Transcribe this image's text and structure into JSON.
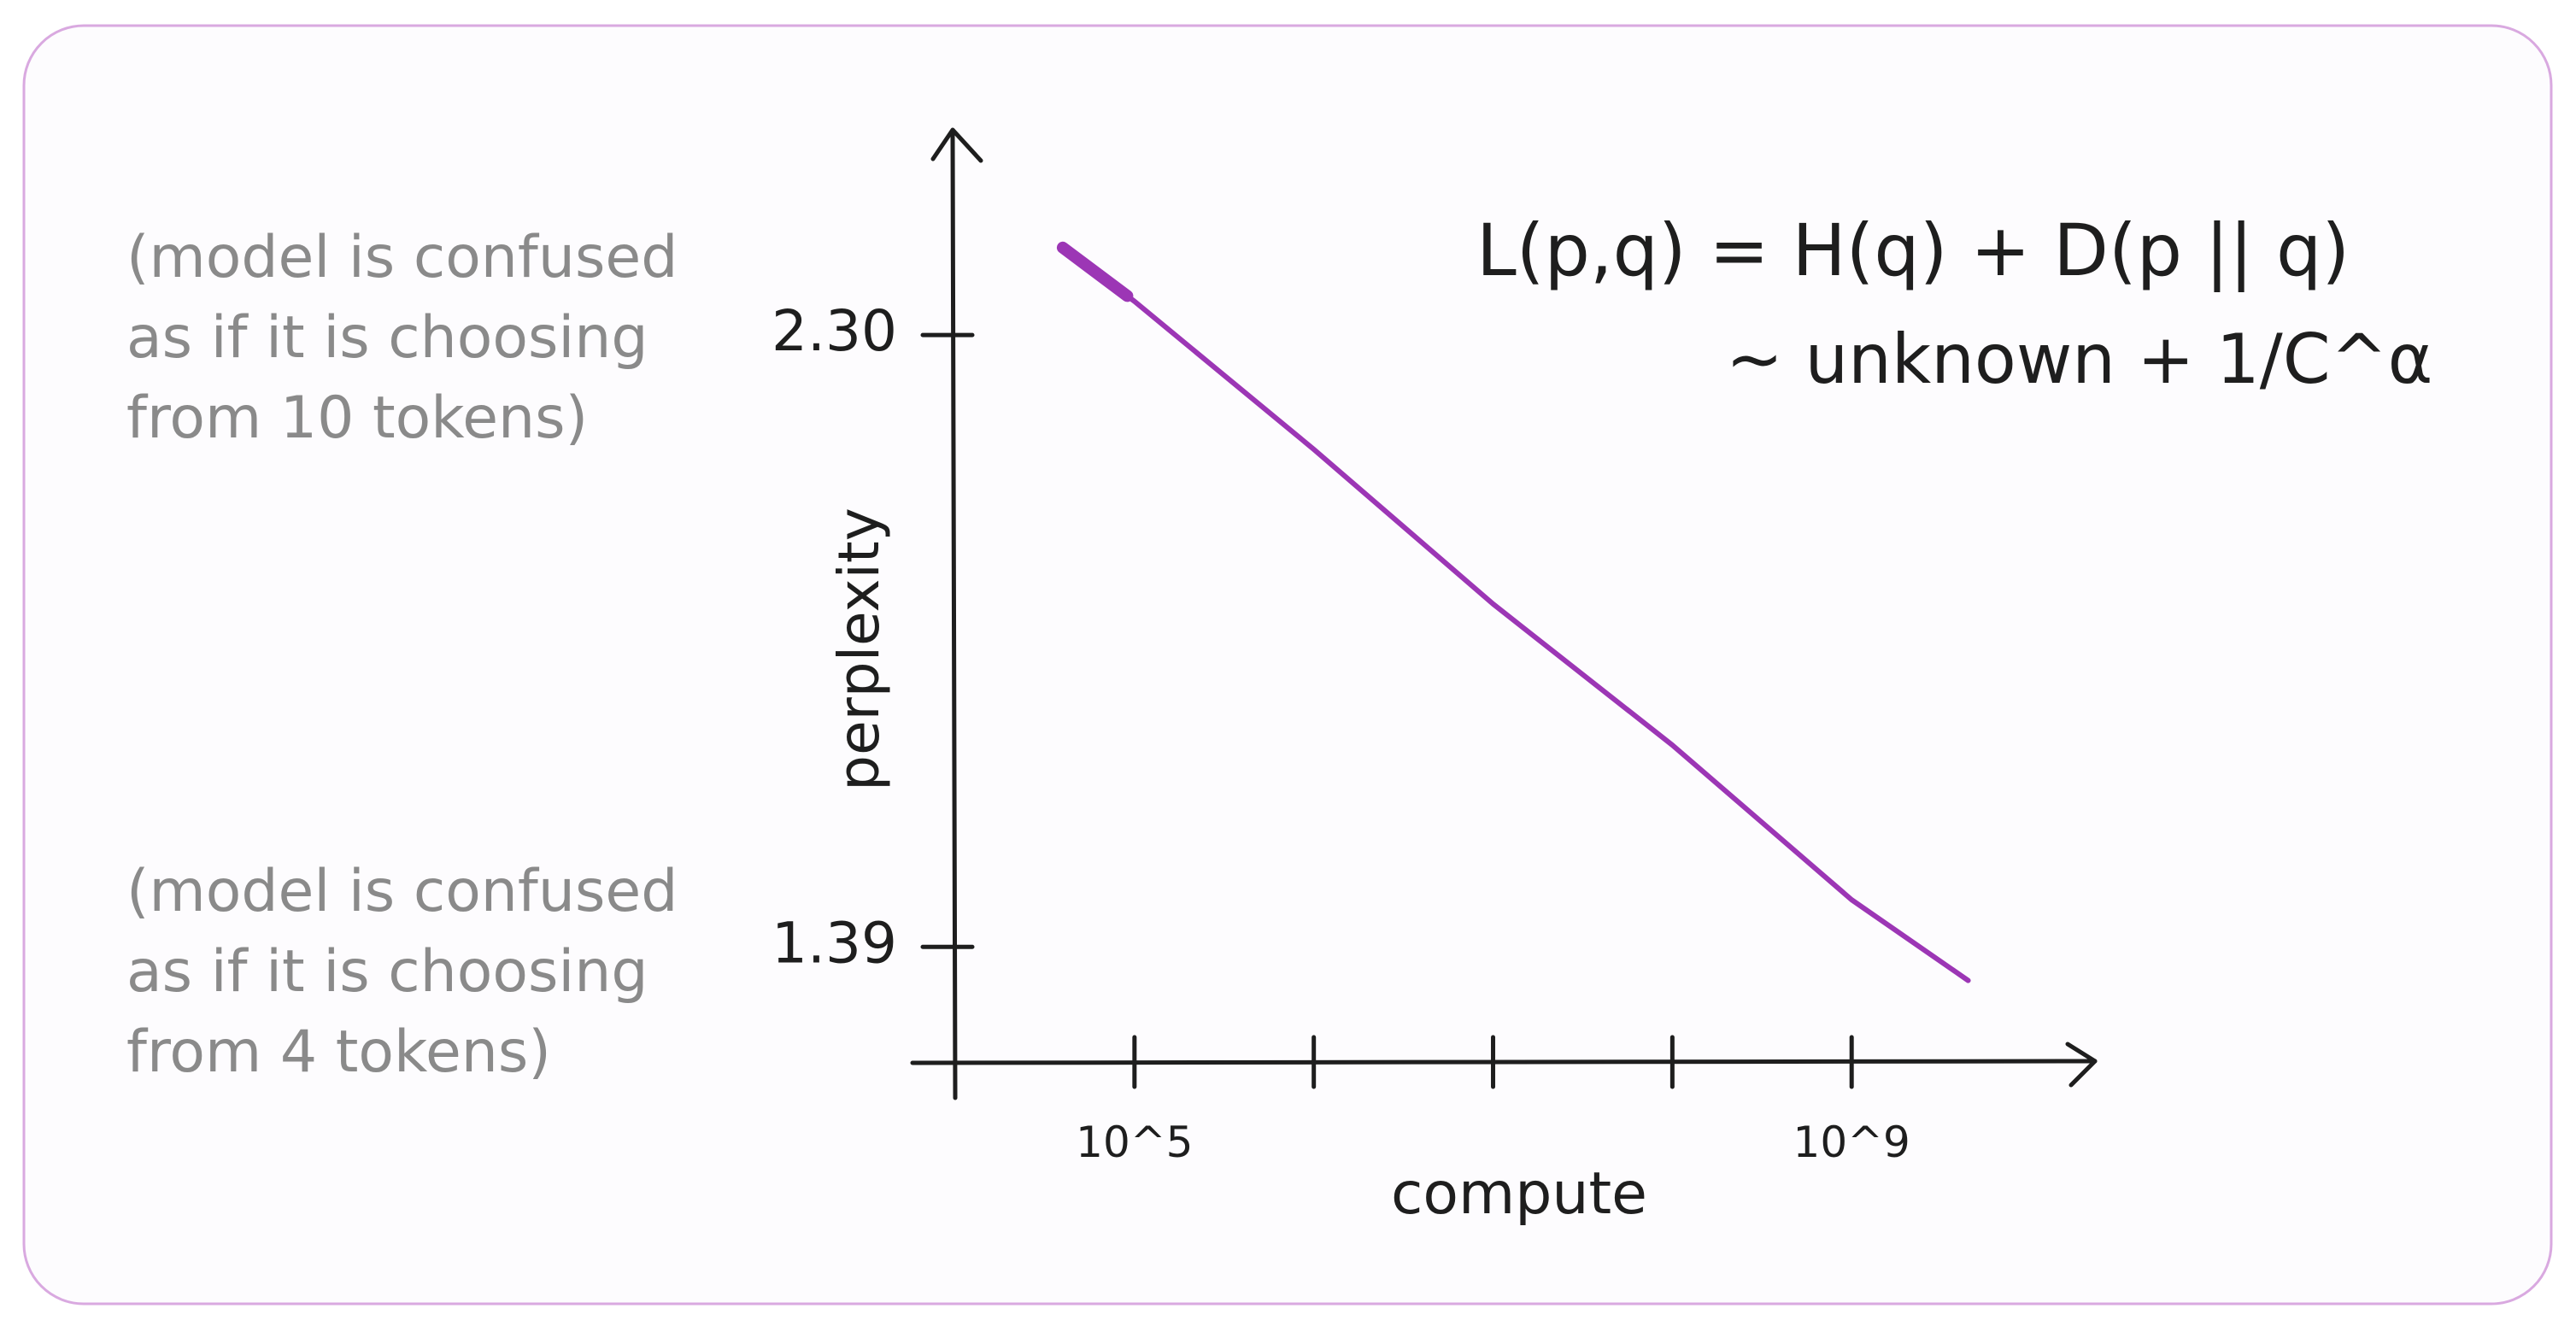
{
  "chart_data": {
    "type": "line",
    "title": "",
    "xlabel": "compute",
    "ylabel": "perplexity",
    "x_tick_labels": [
      "10^5",
      "10^9"
    ],
    "x_tick_values": [
      5,
      9
    ],
    "x_minor_ticks": [
      5,
      6,
      7,
      8,
      9
    ],
    "y_tick_labels": [
      "2.30",
      "1.39"
    ],
    "y_tick_values": [
      2.3,
      1.39
    ],
    "xlim": [
      4,
      10.3
    ],
    "ylim": [
      1.22,
      2.6
    ],
    "x_scale": "log",
    "grid": false,
    "series": [
      {
        "color": "#9c36b5",
        "x": [
          4.6,
          5.0,
          6.0,
          7.0,
          8.0,
          9.0,
          9.65
        ],
        "y": [
          2.43,
          2.35,
          2.13,
          1.9,
          1.69,
          1.46,
          1.34
        ]
      }
    ],
    "annotations": {
      "top_note": [
        "(model is confused",
        "as if it is choosing",
        "from 10 tokens)"
      ],
      "bottom_note": [
        "(model is confused",
        "as if it is choosing",
        "from 4 tokens)"
      ],
      "formula_line1": "L(p,q) = H(q) + D(p || q)",
      "formula_line2": "~ unknown + 1/C^α"
    }
  },
  "colors": {
    "border": "#d9a9e0",
    "background": "#fdfcfe",
    "ink": "#1e1e1e",
    "note": "#8a8a8a",
    "series": "#9c36b5"
  }
}
